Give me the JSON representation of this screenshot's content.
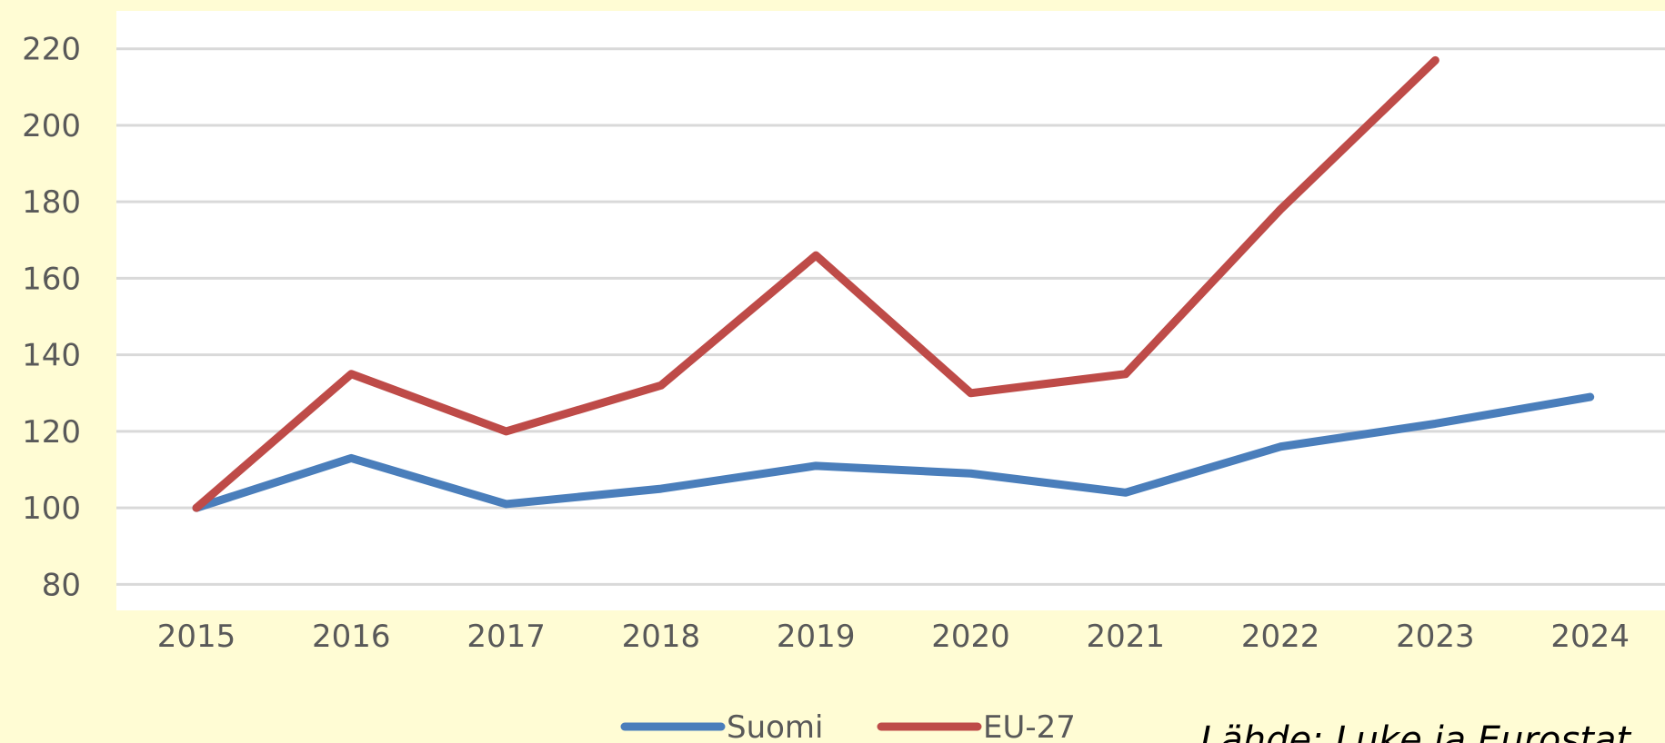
{
  "chart_data": {
    "type": "line",
    "categories": [
      "2015",
      "2016",
      "2017",
      "2018",
      "2019",
      "2020",
      "2021",
      "2022",
      "2023",
      "2024"
    ],
    "series": [
      {
        "name": "Suomi",
        "color": "#4a7ebb",
        "values": [
          100,
          113,
          101,
          105,
          111,
          109,
          104,
          116,
          122,
          129
        ]
      },
      {
        "name": "EU-27",
        "color": "#be4b48",
        "values": [
          100,
          135,
          120,
          132,
          166,
          130,
          135,
          178,
          217,
          null
        ]
      }
    ],
    "ylim": [
      80,
      220
    ],
    "yticks": [
      80,
      100,
      120,
      140,
      160,
      180,
      200,
      220
    ],
    "grid": true,
    "annotation": "Lähde: Luke ja Eurostat"
  }
}
